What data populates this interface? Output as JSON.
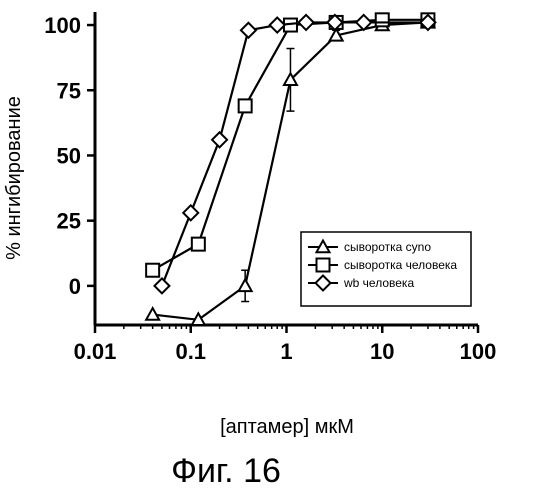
{
  "chart_data": {
    "type": "line",
    "xscale": "log",
    "xlim": [
      0.01,
      100
    ],
    "ylim": [
      -15,
      105
    ],
    "xticks": [
      0.01,
      0.1,
      1,
      10,
      100
    ],
    "xtick_labels": [
      "0.01",
      "0.1",
      "1",
      "10",
      "100"
    ],
    "yticks": [
      0,
      25,
      50,
      75,
      100
    ],
    "ytick_labels": [
      "0",
      "25",
      "50",
      "75",
      "100"
    ],
    "xlabel": "[аптамер] мкМ",
    "ylabel": "% ингибирование",
    "caption": "Фиг. 16",
    "grid": false,
    "legend_position": "lower-right",
    "series": [
      {
        "name": "сыворотка cyno",
        "marker": "triangle",
        "x": [
          0.04,
          0.12,
          0.37,
          1.1,
          3.3,
          10,
          30
        ],
        "y": [
          -11,
          -13,
          0,
          79,
          96,
          100,
          101
        ],
        "yerr": [
          0,
          0,
          6,
          12,
          2,
          0,
          0
        ]
      },
      {
        "name": "сыворотка человека",
        "marker": "square",
        "x": [
          0.04,
          0.12,
          0.37,
          1.1,
          3.3,
          10,
          30
        ],
        "y": [
          6,
          16,
          69,
          100,
          101,
          102,
          102
        ],
        "yerr": [
          0,
          0,
          0,
          0,
          0,
          0,
          0
        ]
      },
      {
        "name": "wb человека",
        "marker": "diamond",
        "x": [
          0.05,
          0.1,
          0.2,
          0.4,
          0.8,
          1.6,
          3.2,
          6.4,
          30
        ],
        "y": [
          0,
          28,
          56,
          98,
          100,
          101,
          101,
          101,
          101
        ],
        "yerr": [
          0,
          0,
          0,
          0,
          0,
          0,
          0,
          0,
          0
        ]
      }
    ]
  }
}
